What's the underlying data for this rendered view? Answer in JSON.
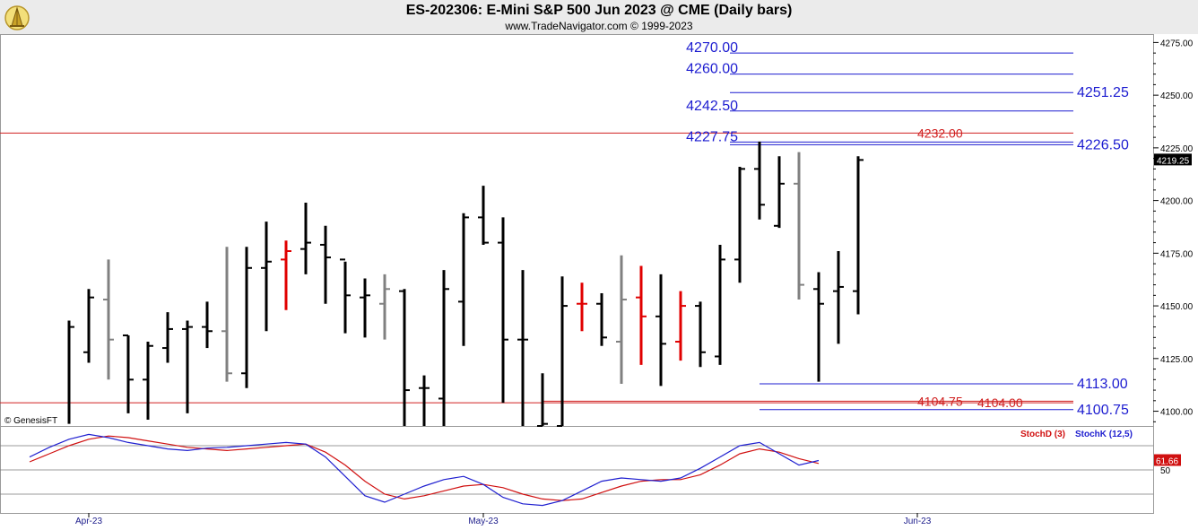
{
  "header": {
    "title": "ES-202306:  E-Mini S&P 500 Jun 2023 @ CME  (Daily bars)",
    "subtitle": "www.TradeNavigator.com © 1999-2023"
  },
  "watermark": "© GenesisFT",
  "colors": {
    "up_bar": "#000000",
    "down_bar": "#808080",
    "signal_bar": "#e00000",
    "blue_level": "#1c1cd0",
    "red_level": "#d02020",
    "stoch_k": "#2020d0",
    "stoch_d": "#d01010"
  },
  "chart_data": [
    {
      "type": "ohlc",
      "name": "price",
      "ylim": [
        4093,
        4279
      ],
      "y_ticks": [
        "4275.00",
        "4250.00",
        "4225.00",
        "4200.00",
        "4175.00",
        "4150.00",
        "4125.00",
        "4100.00"
      ],
      "y_tick_values": [
        4275,
        4250,
        4225,
        4200,
        4175,
        4150,
        4125,
        4100
      ],
      "x_labels": [
        {
          "label": "Apr-23",
          "bar": 1
        },
        {
          "label": "May-23",
          "bar": 21
        },
        {
          "label": "Jun-23",
          "bar": 43
        }
      ],
      "last_price_label": "4219.25",
      "last_price": 4219.25,
      "bars": [
        {
          "o": null,
          "h": 4143,
          "l": 4094,
          "c": 4140,
          "color": "up"
        },
        {
          "o": 4128,
          "h": 4158,
          "l": 4123,
          "c": 4154,
          "color": "up"
        },
        {
          "o": 4153,
          "h": 4172,
          "l": 4115,
          "c": 4134,
          "color": "down"
        },
        {
          "o": 4136,
          "h": 4136,
          "l": 4099,
          "c": 4115,
          "color": "up"
        },
        {
          "o": 4115,
          "h": 4133,
          "l": 4096,
          "c": 4131,
          "color": "up"
        },
        {
          "o": 4130,
          "h": 4147,
          "l": 4123,
          "c": 4139,
          "color": "up"
        },
        {
          "o": 4139,
          "h": 4143,
          "l": 4099,
          "c": 4140,
          "color": "up"
        },
        {
          "o": 4140,
          "h": 4152,
          "l": 4130,
          "c": 4138,
          "color": "up"
        },
        {
          "o": 4138,
          "h": 4178,
          "l": 4114,
          "c": 4118,
          "color": "down"
        },
        {
          "o": 4118,
          "h": 4178,
          "l": 4111,
          "c": 4168,
          "color": "up"
        },
        {
          "o": 4168,
          "h": 4190,
          "l": 4138,
          "c": 4171,
          "color": "up"
        },
        {
          "o": 4172,
          "h": 4181,
          "l": 4148,
          "c": 4176,
          "color": "signal"
        },
        {
          "o": 4177,
          "h": 4199,
          "l": 4165,
          "c": 4180,
          "color": "up"
        },
        {
          "o": 4179,
          "h": 4188,
          "l": 4151,
          "c": 4173,
          "color": "up"
        },
        {
          "o": 4172,
          "h": 4171,
          "l": 4137,
          "c": 4155,
          "color": "up"
        },
        {
          "o": 4154,
          "h": 4163,
          "l": 4135,
          "c": 4155,
          "color": "up"
        },
        {
          "o": 4151,
          "h": 4165,
          "l": 4134,
          "c": 4158,
          "color": "down"
        },
        {
          "o": 4157,
          "h": 4158,
          "l": 4093,
          "c": 4110,
          "color": "up"
        },
        {
          "o": 4111,
          "h": 4117,
          "l": 4093,
          "c": 4111,
          "color": "up"
        },
        {
          "o": 4106,
          "h": 4167,
          "l": 4093,
          "c": 4158,
          "color": "up"
        },
        {
          "o": 4152,
          "h": 4194,
          "l": 4131,
          "c": 4192,
          "color": "up"
        },
        {
          "o": 4192,
          "h": 4207,
          "l": 4179,
          "c": 4180,
          "color": "up"
        },
        {
          "o": 4180,
          "h": 4192,
          "l": 4104,
          "c": 4134,
          "color": "up"
        },
        {
          "o": 4134,
          "h": 4167,
          "l": 4093,
          "c": 4134,
          "color": "up"
        },
        {
          "o": 4093,
          "h": 4118,
          "l": 4093,
          "c": 4094,
          "color": "up"
        },
        {
          "o": 4093,
          "h": 4164,
          "l": 4093,
          "c": 4150,
          "color": "up"
        },
        {
          "o": 4151,
          "h": 4161,
          "l": 4138,
          "c": 4151,
          "color": "signal"
        },
        {
          "o": 4151,
          "h": 4156,
          "l": 4131,
          "c": 4135,
          "color": "up"
        },
        {
          "o": 4133,
          "h": 4174,
          "l": 4113,
          "c": 4153,
          "color": "down"
        },
        {
          "o": 4154,
          "h": 4169,
          "l": 4122,
          "c": 4145,
          "color": "signal"
        },
        {
          "o": 4145,
          "h": 4165,
          "l": 4112,
          "c": 4132,
          "color": "up"
        },
        {
          "o": 4133,
          "h": 4157,
          "l": 4124,
          "c": 4150,
          "color": "signal"
        },
        {
          "o": 4150,
          "h": 4152,
          "l": 4121,
          "c": 4128,
          "color": "up"
        },
        {
          "o": 4126,
          "h": 4179,
          "l": 4122,
          "c": 4172,
          "color": "up"
        },
        {
          "o": 4172,
          "h": 4216,
          "l": 4161,
          "c": 4215,
          "color": "up"
        },
        {
          "o": 4215,
          "h": 4228,
          "l": 4191,
          "c": 4198,
          "color": "up"
        },
        {
          "o": 4188,
          "h": 4221,
          "l": 4187,
          "c": 4208,
          "color": "up"
        },
        {
          "o": 4208,
          "h": 4223,
          "l": 4153,
          "c": 4160,
          "color": "down"
        },
        {
          "o": 4158,
          "h": 4166,
          "l": 4114,
          "c": 4151,
          "color": "up"
        },
        {
          "o": 4157,
          "h": 4176,
          "l": 4132,
          "c": 4159,
          "color": "up"
        },
        {
          "o": 4157,
          "h": 4221,
          "l": 4146,
          "c": 4219.25,
          "color": "up"
        }
      ],
      "levels": [
        {
          "label": "4270.00",
          "value": 4270,
          "color": "blue",
          "label_side": "left",
          "x_start_bar": 33.5
        },
        {
          "label": "4260.00",
          "value": 4260,
          "color": "blue",
          "label_side": "left",
          "x_start_bar": 33.5
        },
        {
          "label": "4251.25",
          "value": 4251.25,
          "color": "blue",
          "label_side": "right",
          "x_start_bar": 33.5
        },
        {
          "label": "4242.50",
          "value": 4242.5,
          "color": "blue",
          "label_side": "left",
          "x_start_bar": 33.5
        },
        {
          "label": "4232.00",
          "value": 4232,
          "color": "red",
          "label_side": "right",
          "x_start_bar": -5
        },
        {
          "label": "4227.75",
          "value": 4227.75,
          "color": "blue",
          "label_side": "left",
          "x_start_bar": 33.5
        },
        {
          "label": "4226.50",
          "value": 4226.5,
          "color": "blue",
          "label_side": "right",
          "x_start_bar": 33.5
        },
        {
          "label": "4113.00",
          "value": 4113,
          "color": "blue",
          "label_side": "right",
          "x_start_bar": 35
        },
        {
          "label": "4104.75",
          "value": 4104.75,
          "color": "red",
          "label_side": "right",
          "x_start_bar": 24
        },
        {
          "label": "4104.00",
          "value": 4104,
          "color": "red",
          "label_side": "right",
          "x_start_bar": -5
        },
        {
          "label": "4100.75",
          "value": 4100.75,
          "color": "blue",
          "label_side": "right",
          "x_start_bar": 35
        }
      ]
    },
    {
      "type": "line",
      "name": "stochastic",
      "ylim": [
        0,
        100
      ],
      "y_ticks": [
        "50"
      ],
      "reference_lines": [
        80,
        50,
        20
      ],
      "last_value_label": "61.66",
      "series": [
        {
          "name": "StochD (3)",
          "color": "red",
          "values": [
            60,
            70,
            80,
            88,
            92,
            90,
            86,
            82,
            78,
            76,
            74,
            76,
            78,
            80,
            82,
            72,
            56,
            36,
            20,
            14,
            18,
            24,
            30,
            32,
            28,
            20,
            14,
            12,
            14,
            22,
            30,
            36,
            38,
            38,
            44,
            56,
            70,
            76,
            72,
            64,
            58
          ]
        },
        {
          "name": "StochK (12,5)",
          "color": "blue",
          "values": [
            66,
            78,
            88,
            94,
            90,
            84,
            80,
            76,
            74,
            77,
            78,
            80,
            82,
            84,
            82,
            66,
            42,
            18,
            10,
            20,
            30,
            38,
            42,
            32,
            16,
            8,
            6,
            12,
            24,
            36,
            40,
            38,
            36,
            40,
            52,
            66,
            80,
            84,
            70,
            56,
            61.66
          ]
        }
      ]
    }
  ]
}
